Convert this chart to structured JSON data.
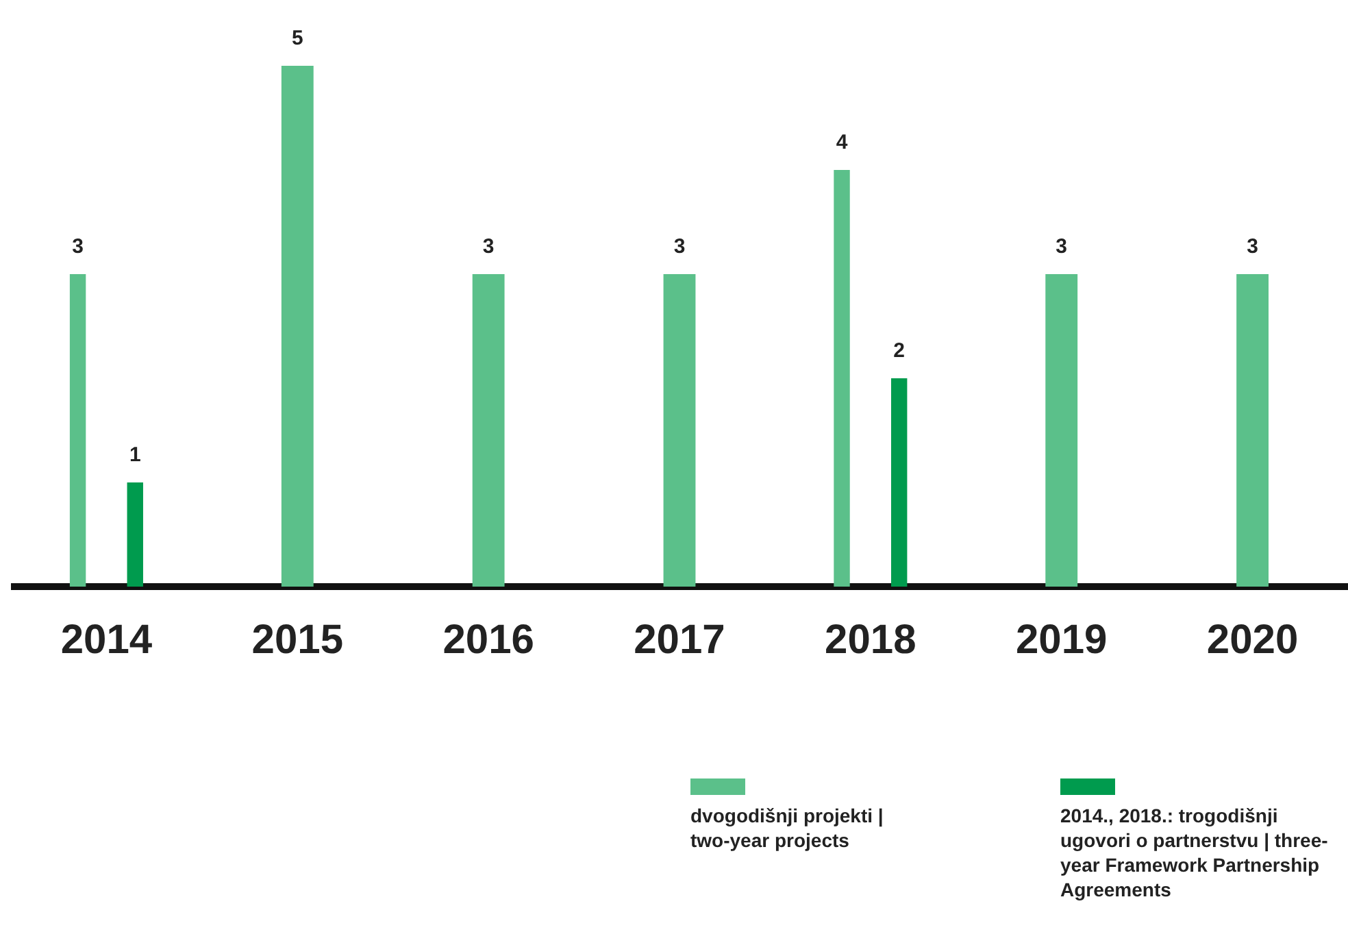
{
  "chart_data": {
    "type": "bar",
    "categories": [
      "2014",
      "2015",
      "2016",
      "2017",
      "2018",
      "2019",
      "2020"
    ],
    "series": [
      {
        "name": "dvogodišnji projekti | two-year projects",
        "color": "#5bc08a",
        "values": [
          3,
          5,
          3,
          3,
          4,
          3,
          3
        ]
      },
      {
        "name": "2014., 2018.: trogodišnji ugovori o partnerstvu | three-year Framework Partnership Agreements",
        "color": "#009b4e",
        "values": [
          1,
          null,
          null,
          null,
          2,
          null,
          null
        ]
      }
    ],
    "data_labels": true,
    "grid": false,
    "legend": "bottom right"
  }
}
